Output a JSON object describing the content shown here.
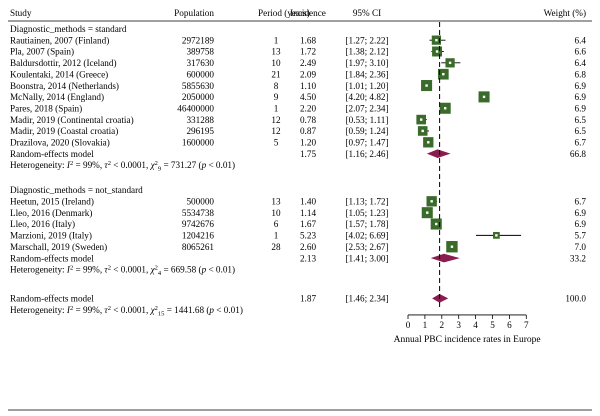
{
  "header": {
    "study": "Study",
    "population": "Population",
    "period": "Period (years)",
    "incidence": "Incidence",
    "ci": "95% CI",
    "weight": "Weight (%)"
  },
  "groups": [
    {
      "label": "Diagnostic_methods = standard",
      "studies": [
        {
          "study": "Rautiainen, 2007 (Finland)",
          "population": "2972189",
          "period": "1",
          "incidence": "1.68",
          "ci": "[1.27; 2.22]",
          "weight": "6.4"
        },
        {
          "study": "Pla, 2007 (Spain)",
          "population": "389758",
          "period": "13",
          "incidence": "1.72",
          "ci": "[1.38; 2.12]",
          "weight": "6.6"
        },
        {
          "study": "Baldursdottir, 2012 (Iceland)",
          "population": "317630",
          "period": "10",
          "incidence": "2.49",
          "ci": "[1.97; 3.10]",
          "weight": "6.4"
        },
        {
          "study": "Koulentaki, 2014 (Greece)",
          "population": "600000",
          "period": "21",
          "incidence": "2.09",
          "ci": "[1.84; 2.36]",
          "weight": "6.8"
        },
        {
          "study": "Boonstra, 2014 (Netherlands)",
          "population": "5855630",
          "period": "8",
          "incidence": "1.10",
          "ci": "[1.01; 1.20]",
          "weight": "6.9"
        },
        {
          "study": "McNally, 2014 (England)",
          "population": "2050000",
          "period": "9",
          "incidence": "4.50",
          "ci": "[4.20; 4.82]",
          "weight": "6.9"
        },
        {
          "study": "Pares, 2018 (Spain)",
          "population": "46400000",
          "period": "1",
          "incidence": "2.20",
          "ci": "[2.07; 2.34]",
          "weight": "6.9"
        },
        {
          "study": "Madir, 2019 (Continental croatia)",
          "population": "331288",
          "period": "12",
          "incidence": "0.78",
          "ci": "[0.53; 1.11]",
          "weight": "6.5"
        },
        {
          "study": "Madir, 2019 (Coastal croatia)",
          "population": "296195",
          "period": "12",
          "incidence": "0.87",
          "ci": "[0.59; 1.24]",
          "weight": "6.5"
        },
        {
          "study": "Drazilova, 2020 (Slovakia)",
          "population": "1600000",
          "period": "5",
          "incidence": "1.20",
          "ci": "[0.97; 1.47]",
          "weight": "6.7"
        }
      ],
      "summary": {
        "label": "Random-effects model",
        "incidence": "1.75",
        "ci": "[1.16; 2.46]",
        "weight": "66.8"
      },
      "heterogeneity": {
        "prefix": "Heterogeneity: ",
        "i2": "99%",
        "tau2": "< 0.0001",
        "chi_df": "9",
        "chi": "731.27",
        "p": "< 0.01"
      }
    },
    {
      "label": "Diagnostic_methods = not_standard",
      "studies": [
        {
          "study": "Heetun, 2015 (Ireland)",
          "population": "500000",
          "period": "13",
          "incidence": "1.40",
          "ci": "[1.13; 1.72]",
          "weight": "6.7"
        },
        {
          "study": "Lleo, 2016 (Denmark)",
          "population": "5534738",
          "period": "10",
          "incidence": "1.14",
          "ci": "[1.05; 1.23]",
          "weight": "6.9"
        },
        {
          "study": "Lleo, 2016 (Italy)",
          "population": "9742676",
          "period": "6",
          "incidence": "1.67",
          "ci": "[1.57; 1.78]",
          "weight": "6.9"
        },
        {
          "study": "Marzioni, 2019 (Italy)",
          "population": "1204216",
          "period": "1",
          "incidence": "5.23",
          "ci": "[4.02; 6.69]",
          "weight": "5.7"
        },
        {
          "study": "Marschall, 2019 (Sweden)",
          "population": "8065261",
          "period": "28",
          "incidence": "2.60",
          "ci": "[2.53; 2.67]",
          "weight": "7.0"
        }
      ],
      "summary": {
        "label": "Random-effects model",
        "incidence": "2.13",
        "ci": "[1.41; 3.00]",
        "weight": "33.2"
      },
      "heterogeneity": {
        "prefix": "Heterogeneity: ",
        "i2": "99%",
        "tau2": "< 0.0001",
        "chi_df": "4",
        "chi": "669.58",
        "p": "< 0.01"
      }
    }
  ],
  "overall": {
    "summary": {
      "label": "Random-effects model",
      "incidence": "1.87",
      "ci": "[1.46; 2.34]",
      "weight": "100.0"
    },
    "heterogeneity": {
      "prefix": "Heterogeneity: ",
      "i2": "99%",
      "tau2": "< 0.0001",
      "chi_df": "15",
      "chi": "1441.68",
      "p": "< 0.01"
    }
  },
  "colors": {
    "box": "#3a6b2a",
    "box_fill_center": "#ffffff",
    "diamond": "#8b1c4e",
    "line": "#000000"
  },
  "chart_data": {
    "type": "forest",
    "xlabel": "Annual PBC incidence rates in Europe",
    "xlim": [
      0,
      7
    ],
    "xticks": [
      "0",
      "1",
      "2",
      "3",
      "4",
      "5",
      "6",
      "7"
    ],
    "reference_line": 1.87,
    "series": [
      {
        "name": "Diagnostic_methods = standard",
        "estimates": [
          1.68,
          1.72,
          2.49,
          2.09,
          1.1,
          4.5,
          2.2,
          0.78,
          0.87,
          1.2
        ],
        "lower": [
          1.27,
          1.38,
          1.97,
          1.84,
          1.01,
          4.2,
          2.07,
          0.53,
          0.59,
          0.97
        ],
        "upper": [
          2.22,
          2.12,
          3.1,
          2.36,
          1.2,
          4.82,
          2.34,
          1.11,
          1.24,
          1.47
        ],
        "weights": [
          6.4,
          6.6,
          6.4,
          6.8,
          6.9,
          6.9,
          6.9,
          6.5,
          6.5,
          6.7
        ],
        "pooled": {
          "estimate": 1.75,
          "lower": 1.16,
          "upper": 2.46
        }
      },
      {
        "name": "Diagnostic_methods = not_standard",
        "estimates": [
          1.4,
          1.14,
          1.67,
          5.23,
          2.6
        ],
        "lower": [
          1.13,
          1.05,
          1.57,
          4.02,
          2.53
        ],
        "upper": [
          1.72,
          1.23,
          1.78,
          6.69,
          2.67
        ],
        "weights": [
          6.7,
          6.9,
          6.9,
          5.7,
          7.0
        ],
        "pooled": {
          "estimate": 2.13,
          "lower": 1.41,
          "upper": 3.0
        }
      }
    ],
    "overall": {
      "estimate": 1.87,
      "lower": 1.46,
      "upper": 2.34
    }
  }
}
